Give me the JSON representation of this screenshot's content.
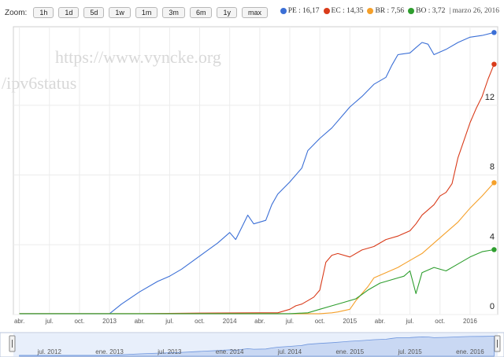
{
  "zoom": {
    "label": "Zoom:",
    "buttons": [
      "1h",
      "1d",
      "5d",
      "1w",
      "1m",
      "3m",
      "6m",
      "1y",
      "max"
    ]
  },
  "legend": {
    "items": [
      {
        "text": "PE : 16,17",
        "color": "#3b6fd6"
      },
      {
        "text": "EC : 14,35",
        "color": "#d93b1a"
      },
      {
        "text": "BR : 7,56",
        "color": "#f5a02a"
      },
      {
        "text": "BO : 3,72",
        "color": "#2e9e2e"
      }
    ],
    "date": "| marzo 26, 2016"
  },
  "watermark": {
    "line1": "https://www.vyncke.org",
    "line2": "/ipv6status"
  },
  "chart_data": {
    "type": "line",
    "x_ticks": [
      "abr.",
      "jul.",
      "oct.",
      "2013",
      "abr.",
      "jul.",
      "oct.",
      "2014",
      "abr.",
      "jul.",
      "oct.",
      "2015",
      "abr.",
      "jul.",
      "oct.",
      "2016"
    ],
    "y_ticks": [
      "0",
      "4",
      "8",
      "12"
    ],
    "ylim": [
      0,
      16.5
    ],
    "x_range": [
      "2012-03",
      "2016-03-26"
    ],
    "grid": true,
    "series": [
      {
        "name": "PE",
        "color": "#3b6fd6",
        "x": [
          2012.25,
          2012.5,
          2012.75,
          2013.0,
          2013.1,
          2013.25,
          2013.4,
          2013.5,
          2013.6,
          2013.7,
          2013.8,
          2013.9,
          2014.0,
          2014.05,
          2014.1,
          2014.15,
          2014.2,
          2014.3,
          2014.35,
          2014.4,
          2014.5,
          2014.6,
          2014.65,
          2014.75,
          2014.85,
          2014.95,
          2015.0,
          2015.1,
          2015.2,
          2015.3,
          2015.35,
          2015.4,
          2015.5,
          2015.55,
          2015.6,
          2015.65,
          2015.7,
          2015.8,
          2015.9,
          2016.0,
          2016.1,
          2016.2
        ],
        "y": [
          0.05,
          0.05,
          0.05,
          0.05,
          0.6,
          1.3,
          1.9,
          2.2,
          2.6,
          3.1,
          3.6,
          4.1,
          4.7,
          4.3,
          5.0,
          5.7,
          5.2,
          5.4,
          6.3,
          6.9,
          7.6,
          8.4,
          9.4,
          10.1,
          10.7,
          11.5,
          11.9,
          12.5,
          13.2,
          13.6,
          14.3,
          14.9,
          15.0,
          15.3,
          15.6,
          15.5,
          14.9,
          15.2,
          15.6,
          15.9,
          16.0,
          16.17
        ]
      },
      {
        "name": "EC",
        "color": "#d93b1a",
        "x": [
          2012.25,
          2012.75,
          2013.25,
          2013.75,
          2014.25,
          2014.4,
          2014.5,
          2014.55,
          2014.6,
          2014.65,
          2014.7,
          2014.75,
          2014.8,
          2014.85,
          2014.9,
          2015.0,
          2015.1,
          2015.2,
          2015.3,
          2015.4,
          2015.5,
          2015.55,
          2015.6,
          2015.7,
          2015.75,
          2015.8,
          2015.85,
          2015.9,
          2015.95,
          2016.0,
          2016.05,
          2016.1,
          2016.15,
          2016.2
        ],
        "y": [
          0.05,
          0.05,
          0.05,
          0.08,
          0.1,
          0.1,
          0.3,
          0.5,
          0.6,
          0.8,
          1.0,
          1.4,
          3.0,
          3.4,
          3.5,
          3.3,
          3.7,
          3.9,
          4.3,
          4.5,
          4.8,
          5.2,
          5.7,
          6.3,
          6.8,
          7.0,
          7.5,
          9.0,
          10.0,
          11.0,
          11.8,
          12.5,
          13.5,
          14.35
        ]
      },
      {
        "name": "BR",
        "color": "#f5a02a",
        "x": [
          2012.25,
          2013.0,
          2014.0,
          2014.5,
          2014.75,
          2014.85,
          2014.9,
          2015.0,
          2015.05,
          2015.1,
          2015.15,
          2015.2,
          2015.3,
          2015.4,
          2015.5,
          2015.6,
          2015.7,
          2015.8,
          2015.9,
          2016.0,
          2016.1,
          2016.2
        ],
        "y": [
          0.05,
          0.05,
          0.05,
          0.05,
          0.05,
          0.1,
          0.15,
          0.3,
          0.8,
          1.2,
          1.6,
          2.1,
          2.4,
          2.7,
          3.1,
          3.5,
          4.1,
          4.7,
          5.3,
          6.1,
          6.8,
          7.56
        ]
      },
      {
        "name": "BO",
        "color": "#2e9e2e",
        "x": [
          2012.25,
          2013.0,
          2014.0,
          2014.5,
          2014.65,
          2014.75,
          2014.85,
          2014.95,
          2015.05,
          2015.15,
          2015.25,
          2015.35,
          2015.45,
          2015.5,
          2015.55,
          2015.6,
          2015.7,
          2015.8,
          2015.9,
          2016.0,
          2016.1,
          2016.2
        ],
        "y": [
          0.05,
          0.05,
          0.05,
          0.05,
          0.1,
          0.3,
          0.5,
          0.7,
          0.9,
          1.4,
          1.8,
          2.0,
          2.2,
          2.5,
          1.2,
          2.4,
          2.7,
          2.5,
          2.9,
          3.3,
          3.6,
          3.72
        ]
      }
    ]
  },
  "navigator": {
    "labels": [
      "jul. 2012",
      "ene. 2013",
      "jul. 2013",
      "ene. 2014",
      "jul. 2014",
      "ene. 2015",
      "jul. 2015",
      "ene. 2016"
    ]
  }
}
